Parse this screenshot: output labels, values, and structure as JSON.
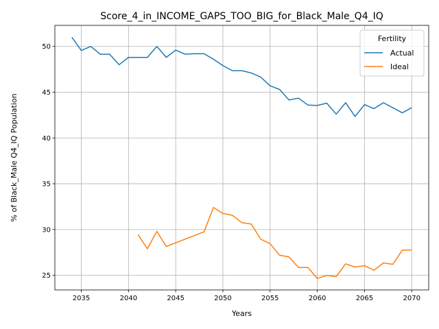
{
  "chart_data": {
    "type": "line",
    "title": "Score_4_in_INCOME_GAPS_TOO_BIG_for_Black_Male_Q4_IQ",
    "xlabel": "Years",
    "ylabel": "% of Black_Male Q4_IQ Population",
    "xlim": [
      2032.2,
      2071.8
    ],
    "ylim": [
      23.4,
      52.3
    ],
    "xticks": [
      2035,
      2040,
      2045,
      2050,
      2055,
      2060,
      2065,
      2070
    ],
    "yticks": [
      25,
      30,
      35,
      40,
      45,
      50
    ],
    "grid": true,
    "legend": {
      "title": "Fertility",
      "placement": "top-right"
    },
    "series": [
      {
        "name": "Actual",
        "color": "#1f77b4",
        "x": [
          2034,
          2035,
          2036,
          2037,
          2038,
          2039,
          2040,
          2041,
          2042,
          2043,
          2044,
          2045,
          2046,
          2047,
          2048,
          2049,
          2050,
          2051,
          2052,
          2053,
          2054,
          2055,
          2056,
          2057,
          2058,
          2059,
          2060,
          2061,
          2062,
          2063,
          2064,
          2065,
          2066,
          2067,
          2068,
          2069,
          2070
        ],
        "y": [
          51.0,
          49.55,
          50.0,
          49.15,
          49.15,
          48.0,
          48.8,
          48.8,
          48.8,
          50.0,
          48.8,
          49.6,
          49.15,
          49.2,
          49.2,
          48.6,
          47.9,
          47.35,
          47.35,
          47.1,
          46.65,
          45.7,
          45.3,
          44.15,
          44.35,
          43.6,
          43.55,
          43.8,
          42.6,
          43.85,
          42.35,
          43.65,
          43.2,
          43.85,
          43.3,
          42.75,
          43.3
        ]
      },
      {
        "name": "Ideal",
        "color": "#ff7f0e",
        "x": [
          2041,
          2042,
          2043,
          2044,
          2045,
          2046,
          2047,
          2048,
          2049,
          2050,
          2051,
          2052,
          2053,
          2054,
          2055,
          2056,
          2057,
          2058,
          2059,
          2060,
          2061,
          2062,
          2063,
          2064,
          2065,
          2066,
          2067,
          2068,
          2069,
          2070
        ],
        "y": [
          29.45,
          27.9,
          29.8,
          28.15,
          28.55,
          28.95,
          29.35,
          29.75,
          32.4,
          31.75,
          31.55,
          30.75,
          30.6,
          28.95,
          28.45,
          27.2,
          27.0,
          25.85,
          25.85,
          24.65,
          25.0,
          24.85,
          26.25,
          25.9,
          26.05,
          25.55,
          26.35,
          26.2,
          27.75,
          27.75
        ]
      }
    ]
  }
}
